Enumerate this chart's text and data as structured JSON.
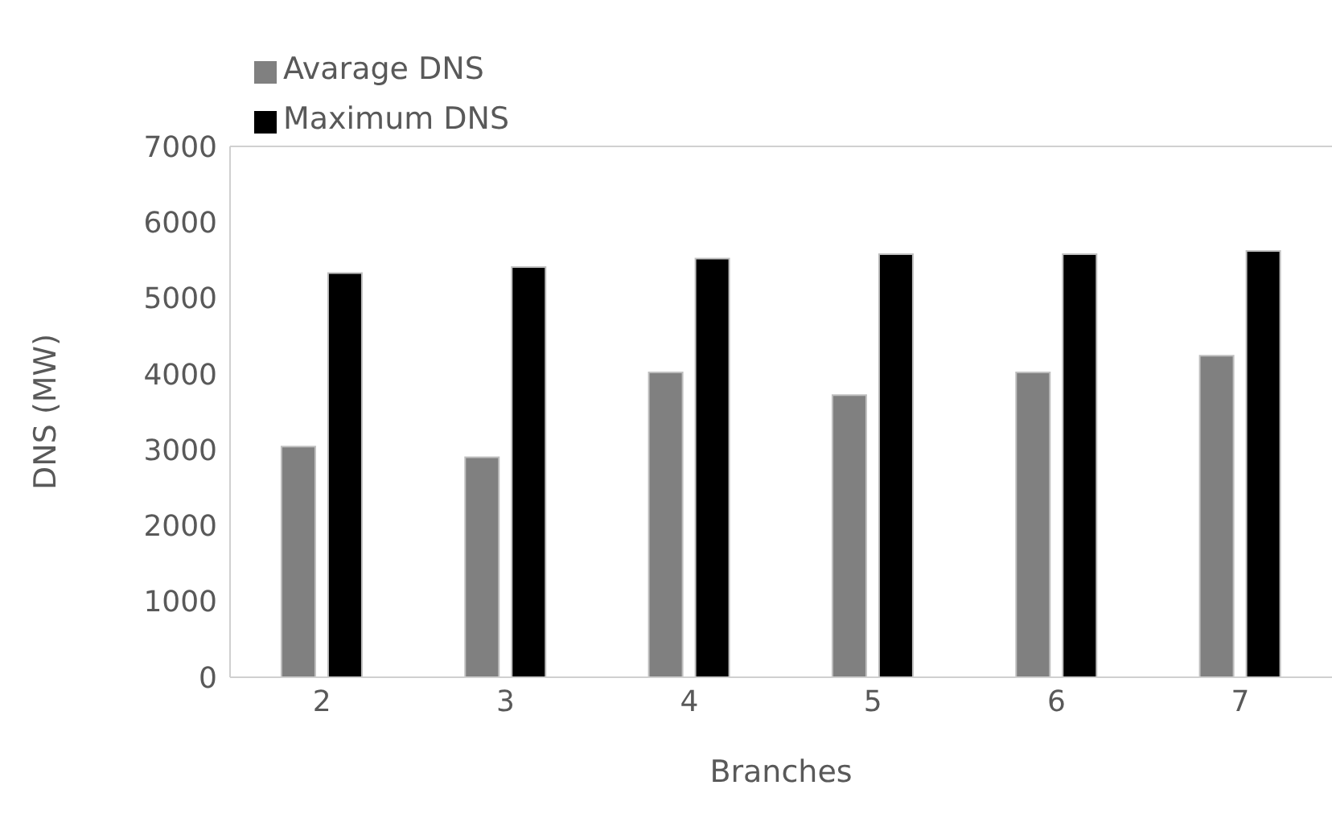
{
  "chart_data": {
    "type": "bar",
    "xlabel": "Branches",
    "ylabel": "DNS (MW)",
    "categories": [
      "2",
      "3",
      "4",
      "5",
      "6",
      "7"
    ],
    "series": [
      {
        "name": "Avarage DNS",
        "color": "#808080",
        "values": [
          3040,
          2900,
          4020,
          3720,
          4020,
          4240
        ]
      },
      {
        "name": "Maximum DNS",
        "color": "#000000",
        "values": [
          5330,
          5410,
          5520,
          5580,
          5580,
          5620
        ]
      }
    ],
    "ylim": [
      0,
      7000
    ],
    "yticks": [
      0,
      1000,
      2000,
      3000,
      4000,
      5000,
      6000,
      7000
    ],
    "grid": false,
    "legend": "top left"
  }
}
